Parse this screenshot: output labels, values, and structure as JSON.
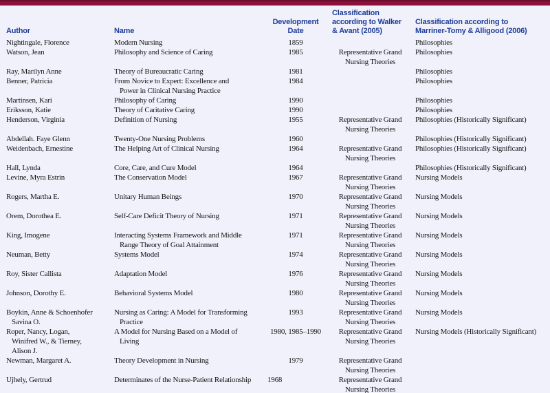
{
  "theme": {
    "top_bar_color": "#8d1039",
    "page_background": "#f0f1fa",
    "header_text_color": "#1e3d99",
    "body_text_color": "#141414"
  },
  "table": {
    "columns": [
      {
        "id": "author",
        "label": "Author"
      },
      {
        "id": "name",
        "label": "Name"
      },
      {
        "id": "date",
        "label": "Development\nDate"
      },
      {
        "id": "walker",
        "label": "Classification\naccording to Walker\n& Avant (2005)"
      },
      {
        "id": "marriner",
        "label": "Classification according to\nMarriner-Tomy & Alligood (2006)"
      }
    ],
    "rows": [
      {
        "author": "Nightingale, Florence",
        "name": "Modern Nursing",
        "date": "1859",
        "walker": "",
        "marriner": "Philosophies"
      },
      {
        "author": "Watson, Jean",
        "name": "Philosophy and Science of Caring",
        "date": "1985",
        "walker": "Representative Grand\nNursing Theories",
        "marriner": "Philosophies"
      },
      {
        "author": "Ray, Marilyn Anne",
        "name": "Theory of Bureaucratic Caring",
        "date": "1981",
        "walker": "",
        "marriner": "Philosophies"
      },
      {
        "author": "Benner, Patricia",
        "name": "From Novice to Expert: Excellence and\nPower in Clinical Nursing Practice",
        "date": "1984",
        "walker": "",
        "marriner": "Philosophies"
      },
      {
        "author": "Martinsen, Kari",
        "name": "Philosophy of Caring",
        "date": "1990",
        "walker": "",
        "marriner": "Philosophies"
      },
      {
        "author": "Eriksson, Katie",
        "name": "Theory of Caritative Caring",
        "date": "1990",
        "walker": "",
        "marriner": "Philosophies"
      },
      {
        "author": "Henderson, Virginia",
        "name": "Definition of Nursing",
        "date": "1955",
        "walker": "Representative Grand\nNursing Theories",
        "marriner": "Philosophies (Historically Significant)"
      },
      {
        "author": "Abdellah. Faye Glenn",
        "name": "Twenty-One Nursing Problems",
        "date": "1960",
        "walker": "",
        "marriner": "Philosophies (Historically Significant)"
      },
      {
        "author": "Weidenbach, Ernestine",
        "name": "The Helping Art of Clinical Nursing",
        "date": "1964",
        "walker": "Representative Grand\nNursing Theories",
        "marriner": "Philosophies (Historically Significant)"
      },
      {
        "author": "Hall, Lynda",
        "name": "Core, Care, and Cure Model",
        "date": "1964",
        "walker": "",
        "marriner": "Philosophies (Historically Significant)"
      },
      {
        "author": "Levine, Myra Estrin",
        "name": "The Conservation Model",
        "date": "1967",
        "walker": "Representative Grand\nNursing Theories",
        "marriner": "Nursing Models"
      },
      {
        "author": "Rogers, Martha E.",
        "name": "Unitary Human Beings",
        "date": "1970",
        "walker": "Representative Grand\nNursing Theories",
        "marriner": "Nursing Models"
      },
      {
        "author": "Orem, Dorothea E.",
        "name": "Self-Care Deficit Theory of Nursing",
        "date": "1971",
        "walker": "Representative Grand\nNursing Theories",
        "marriner": "Nursing Models"
      },
      {
        "author": "King, Imogene",
        "name": "Interacting Systems Framework and Middle\nRange Theory of Goal Attainment",
        "date": "1971",
        "walker": "Representative Grand\nNursing Theories",
        "marriner": "Nursing Models"
      },
      {
        "author": "Neuman, Betty",
        "name": "Systems Model",
        "date": "1974",
        "walker": "Representative Grand\nNursing Theories",
        "marriner": "Nursing Models"
      },
      {
        "author": "Roy, Sister Callista",
        "name": "Adaptation Model",
        "date": "1976",
        "walker": "Representative Grand\nNursing Theories",
        "marriner": "Nursing Models"
      },
      {
        "author": "Johnson, Dorothy E.",
        "name": "Behavioral Systems Model",
        "date": "1980",
        "walker": "Representative Grand\nNursing Theories",
        "marriner": "Nursing Models"
      },
      {
        "author": "Boykin, Anne & Schoenhofer\nSavina O.",
        "name": "Nursing as Caring: A Model for Transforming\nPractice",
        "date": "1993",
        "walker": "Representative Grand\nNursing Theories",
        "marriner": "Nursing Models"
      },
      {
        "author": "Roper, Nancy, Logan,\nWinifred W., & Tierney,\nAlison J.",
        "name": "A Model for Nursing Based on a Model of\nLiving",
        "date": "1980, 1985–1990",
        "walker": "Representative Grand\nNursing Theories",
        "marriner": "Nursing Models (Historically Significant)"
      },
      {
        "author": "Newman, Margaret A.",
        "name": "Theory Development in Nursing",
        "date": "1979",
        "walker": "Representative Grand\nNursing Theories",
        "marriner": ""
      },
      {
        "author": "Ujhely, Gertrud",
        "name": "Determinates of the Nurse-Patient Relationship",
        "date": "1968",
        "date_align": "left",
        "walker": "Representative Grand\nNursing Theories",
        "marriner": ""
      }
    ]
  }
}
